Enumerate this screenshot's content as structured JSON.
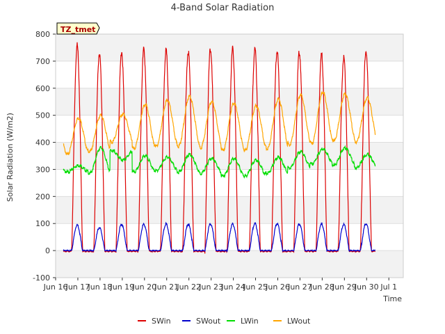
{
  "chart_data": {
    "type": "line",
    "title": "4-Band Solar Radiation",
    "xlabel": "Time",
    "ylabel": "Solar Radiation (W/m2)",
    "annotation": "TZ_tmet",
    "xlim": [
      15.55,
      31.2
    ],
    "ylim": [
      -100,
      800
    ],
    "x_ticks": [
      {
        "value": 15.55,
        "label": "Jun 16"
      },
      {
        "value": 16.55,
        "label": "Jun 17"
      },
      {
        "value": 17.55,
        "label": "Jun 18"
      },
      {
        "value": 18.55,
        "label": "Jun 19"
      },
      {
        "value": 19.55,
        "label": "Jun 20"
      },
      {
        "value": 20.55,
        "label": "Jun 21"
      },
      {
        "value": 21.55,
        "label": "Jun 22"
      },
      {
        "value": 22.55,
        "label": "Jun 23"
      },
      {
        "value": 23.55,
        "label": "Jun 24"
      },
      {
        "value": 24.55,
        "label": "Jun 25"
      },
      {
        "value": 25.55,
        "label": "Jun 26"
      },
      {
        "value": 26.55,
        "label": "Jun 27"
      },
      {
        "value": 27.55,
        "label": "Jun 28"
      },
      {
        "value": 28.55,
        "label": "Jun 29"
      },
      {
        "value": 29.55,
        "label": "Jun 30"
      },
      {
        "value": 30.55,
        "label": "Jul 1"
      }
    ],
    "y_ticks": [
      -100,
      0,
      100,
      200,
      300,
      400,
      500,
      600,
      700,
      800
    ],
    "x_tick_labels": [
      "Jun 16",
      "Jun 17",
      "Jun 18",
      "Jun 19",
      "Jun 20",
      "Jun 21",
      "Jun 22",
      "Jun 23",
      "Jun 24",
      "Jun 25",
      "Jun 26",
      "Jun 27",
      "Jun 28",
      "Jun 29",
      "Jun 30",
      "Jul 1"
    ],
    "y_tick_labels": [
      "-100",
      "0",
      "100",
      "200",
      "300",
      "400",
      "500",
      "600",
      "700",
      "800"
    ],
    "grid": true,
    "legend_position": "bottom",
    "days": [
      15.75,
      16.75,
      17.75,
      18.75,
      19.75,
      20.75,
      21.75,
      22.75,
      23.75,
      24.75,
      25.75,
      26.75,
      27.75,
      28.75,
      29.75
    ],
    "series": [
      {
        "name": "SWin",
        "color": "#dd0000",
        "daily_peak": [
          760,
          730,
          735,
          745,
          740,
          735,
          745,
          745,
          745,
          740,
          735,
          725,
          715,
          740,
          0
        ],
        "night_value": -3
      },
      {
        "name": "SWout",
        "color": "#0000cc",
        "daily_peak": [
          95,
          85,
          97,
          97,
          98,
          97,
          98,
          98,
          100,
          100,
          98,
          98,
          97,
          100,
          0
        ],
        "night_value": 0
      },
      {
        "name": "LWin",
        "color": "#00dd00",
        "day_value": [
          315,
          380,
          335,
          350,
          345,
          355,
          340,
          340,
          335,
          345,
          365,
          375,
          380,
          355,
          295
        ],
        "night_value": [
          290,
          285,
          370,
          290,
          295,
          290,
          285,
          275,
          275,
          285,
          305,
          320,
          315,
          305,
          295
        ]
      },
      {
        "name": "LWout",
        "color": "#ffa500",
        "day_value": [
          490,
          500,
          505,
          540,
          555,
          570,
          550,
          545,
          535,
          560,
          575,
          585,
          580,
          565,
          390
        ],
        "night_value": [
          355,
          365,
          400,
          375,
          385,
          385,
          380,
          370,
          370,
          375,
          390,
          395,
          405,
          400,
          390
        ]
      }
    ]
  }
}
